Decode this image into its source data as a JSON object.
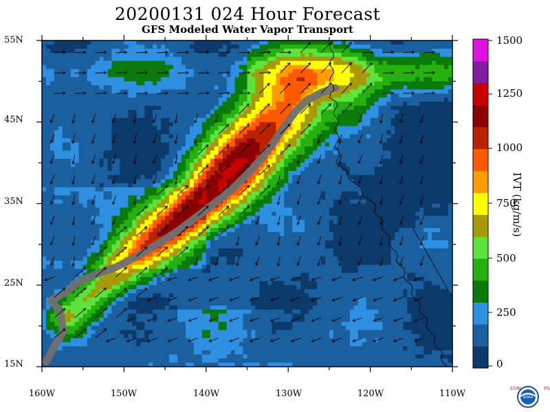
{
  "title": "20200131 024 Hour Forecast",
  "subtitle": "GFS Modeled Water Vapor Transport",
  "lat_labels": [
    "55N",
    "45N",
    "35N",
    "25N",
    "15N"
  ],
  "lon_labels": [
    "160W",
    "150W",
    "140W",
    "130W",
    "120W",
    "110W"
  ],
  "colorbar": {
    "unit": "IVT (kg/m/s)",
    "labels": [
      "1500",
      "1250",
      "1000",
      "750",
      "500",
      "250",
      "0"
    ],
    "colors": [
      "#0b3a6b",
      "#1a5f9e",
      "#2f8fe0",
      "#0a7a0a",
      "#26b10f",
      "#5de33b",
      "#a69a08",
      "#ffff00",
      "#ff9d00",
      "#ff5a00",
      "#bb2200",
      "#8b0000",
      "#c80000",
      "#7f1fa0",
      "#e010e0"
    ]
  },
  "map": {
    "lat_range": [
      15,
      55
    ],
    "lon_range": [
      -160,
      -110
    ],
    "feature": "atmospheric river",
    "river_axis": [
      [
        -157,
        21
      ],
      [
        -148,
        29
      ],
      [
        -140,
        35.5
      ],
      [
        -135,
        41
      ],
      [
        -131,
        45.5
      ],
      [
        -128,
        49
      ],
      [
        -124,
        50
      ]
    ]
  },
  "logo": {
    "left_text": "ESRL",
    "right_text": "PSD",
    "center_text": "NOAA"
  }
}
